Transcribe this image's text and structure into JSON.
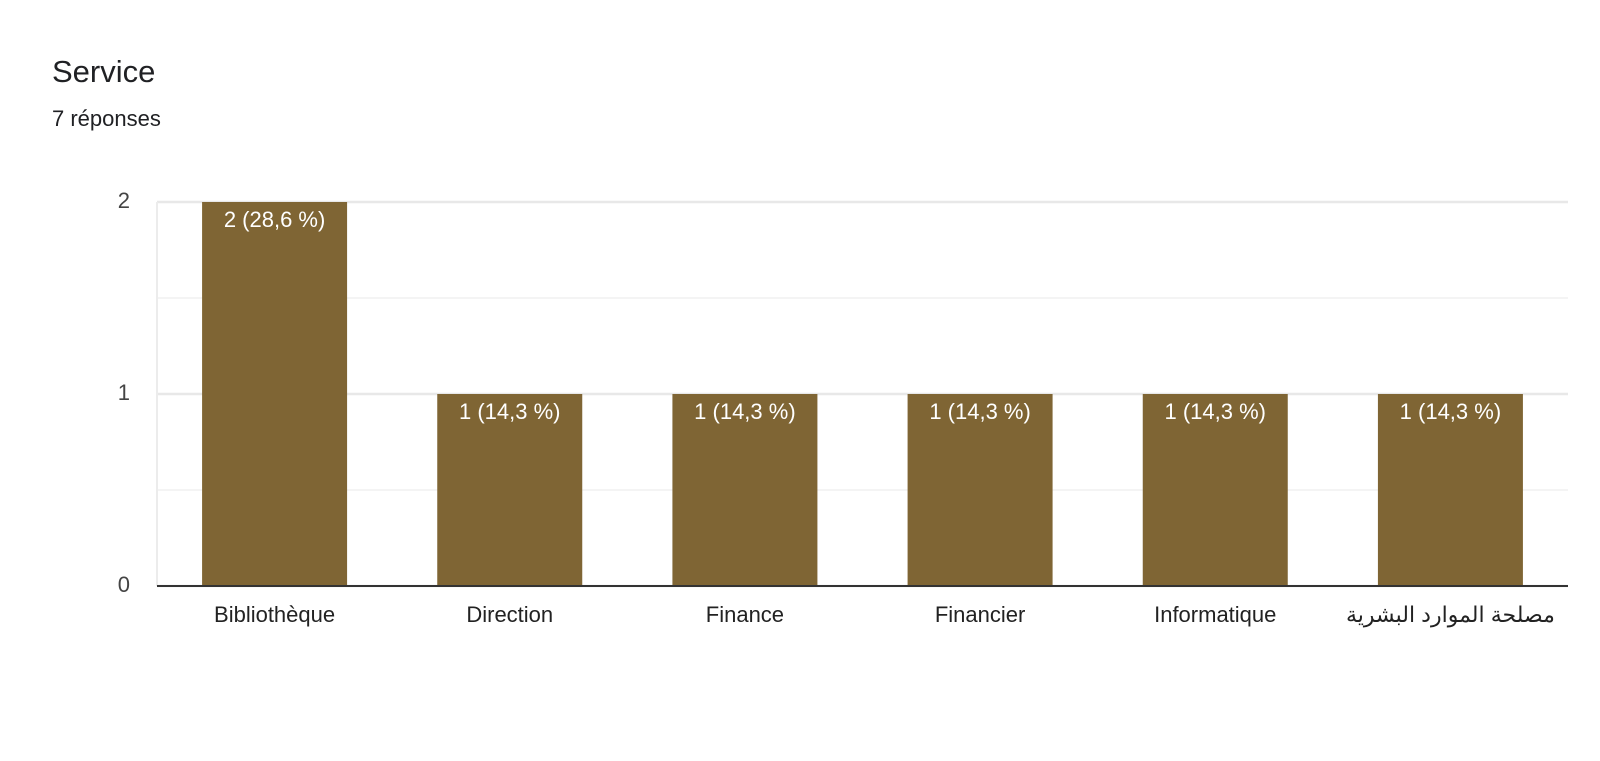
{
  "chart_data": {
    "type": "bar",
    "title": "Service",
    "subtitle": "7 réponses",
    "categories": [
      "Bibliothèque",
      "Direction",
      "Finance",
      "Financier",
      "Informatique",
      "مصلحة الموارد البشرية"
    ],
    "values": [
      2,
      1,
      1,
      1,
      1,
      1
    ],
    "value_labels": [
      "2 (28,6 %)",
      "1 (14,3 %)",
      "1 (14,3 %)",
      "1 (14,3 %)",
      "1 (14,3 %)",
      "1 (14,3 %)"
    ],
    "color": "#7f6534",
    "ylim": [
      0,
      2
    ],
    "yticks": [
      0,
      1,
      2
    ],
    "minor_yticks": [
      0.5,
      1.5
    ],
    "grid": true
  }
}
